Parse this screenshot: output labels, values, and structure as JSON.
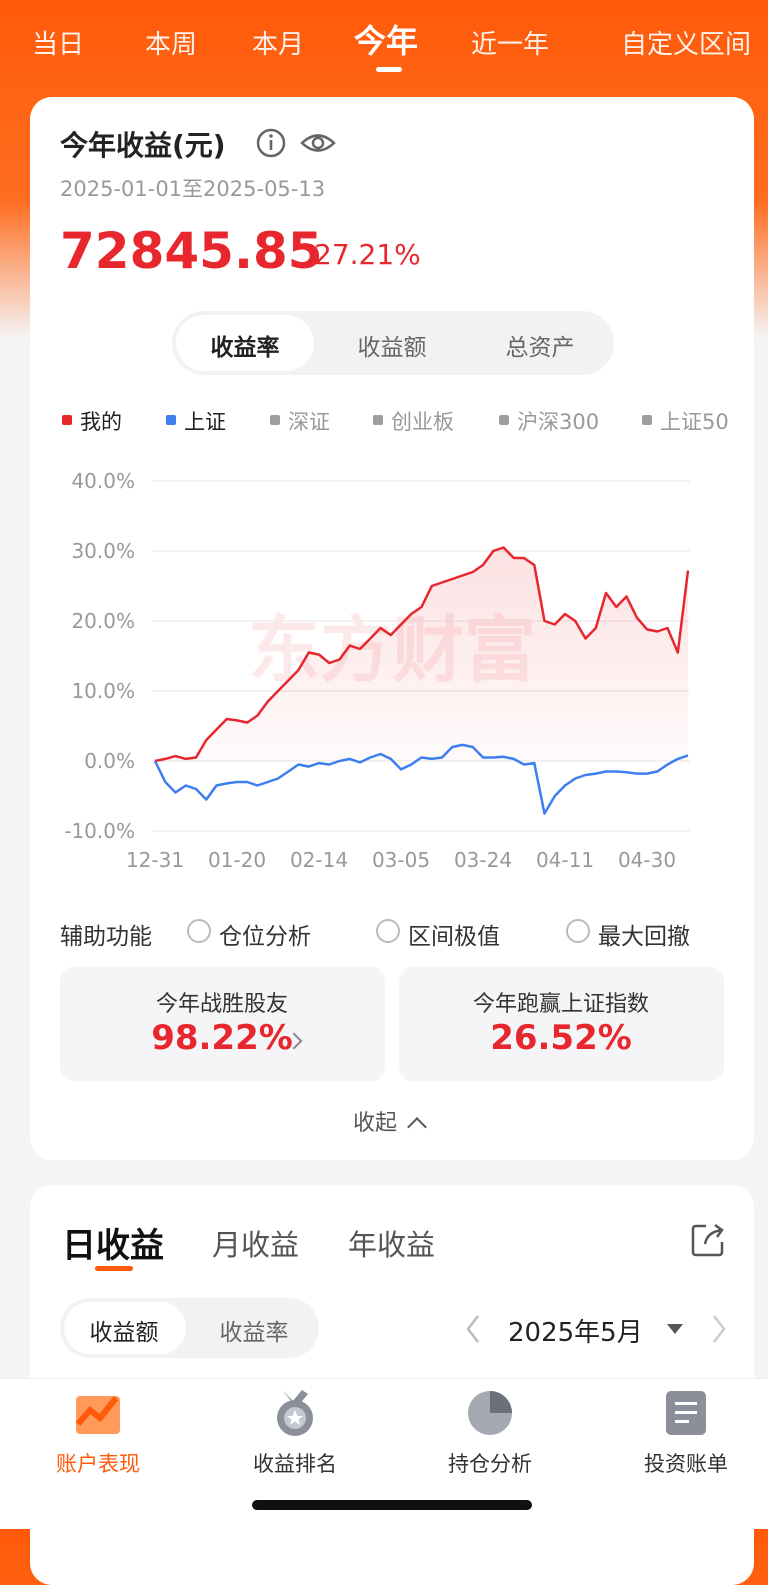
{
  "period_tabs": [
    "当日",
    "本周",
    "本月",
    "今年",
    "近一年",
    "自定义区间"
  ],
  "active_tab": 3,
  "summary": {
    "title": "今年收益(元)",
    "date_range": "2025-01-01至2025-05-13",
    "amount": "72845.85",
    "rate": "27.21%"
  },
  "metric_tabs": [
    "收益率",
    "收益额",
    "总资产"
  ],
  "active_metric": 0,
  "chart_data": {
    "type": "line",
    "watermark": "东方财富",
    "categories": [
      "12-31",
      null,
      null,
      null,
      null,
      null,
      null,
      null,
      "01-20",
      null,
      null,
      null,
      null,
      null,
      null,
      null,
      "02-14",
      null,
      null,
      null,
      null,
      null,
      null,
      null,
      "03-05",
      null,
      null,
      null,
      null,
      null,
      null,
      null,
      "03-24",
      null,
      null,
      null,
      null,
      null,
      null,
      null,
      "04-11",
      null,
      null,
      null,
      null,
      null,
      null,
      null,
      "04-30",
      null,
      null,
      null,
      null
    ],
    "series": [
      {
        "name": "我的",
        "color": "#e8262d",
        "values": [
          0,
          0.3,
          0.7,
          0.3,
          0.5,
          3,
          4.5,
          6,
          5.8,
          5.5,
          6.5,
          8.5,
          10,
          11.5,
          13,
          15.5,
          15.2,
          14,
          14.5,
          16.5,
          16,
          17.5,
          19,
          18,
          19.5,
          21,
          22,
          25,
          25.5,
          26,
          26.5,
          27,
          28,
          30,
          30.5,
          29,
          29,
          28,
          20,
          19.5,
          21,
          20,
          17.5,
          19,
          24,
          22,
          23.5,
          20.5,
          18.8,
          18.5,
          19,
          15.5,
          27.21
        ]
      },
      {
        "name": "上证",
        "color": "#3d7ef0",
        "values": [
          0,
          -3,
          -4.5,
          -3.5,
          -4,
          -5.5,
          -3.5,
          -3.2,
          -3,
          -3,
          -3.5,
          -3,
          -2.5,
          -1.5,
          -0.5,
          -0.8,
          -0.3,
          -0.5,
          0,
          0.3,
          -0.2,
          0.5,
          1,
          0.3,
          -1.2,
          -0.5,
          0.5,
          0.3,
          0.5,
          2,
          2.3,
          2,
          0.5,
          0.5,
          0.6,
          0.3,
          -0.5,
          -0.3,
          -7.5,
          -5,
          -3.5,
          -2.5,
          -2,
          -1.8,
          -1.5,
          -1.5,
          -1.6,
          -1.8,
          -1.8,
          -1.5,
          -0.5,
          0.3,
          0.8
        ]
      }
    ],
    "other_indices": [
      {
        "name": "深证",
        "color": "#9e9e9e"
      },
      {
        "name": "创业板",
        "color": "#9e9e9e"
      },
      {
        "name": "沪深300",
        "color": "#9e9e9e"
      },
      {
        "name": "上证50",
        "color": "#9e9e9e"
      }
    ],
    "ylim": [
      -10,
      40
    ],
    "yticks": [
      {
        "value": -10,
        "label": "-10.0%"
      },
      {
        "value": 0,
        "label": "0.0%"
      },
      {
        "value": 10,
        "label": "10.0%"
      },
      {
        "value": 20,
        "label": "20.0%"
      },
      {
        "value": 30,
        "label": "30.0%"
      },
      {
        "value": 40,
        "label": "40.0%"
      }
    ],
    "grid": true
  },
  "tools": {
    "label": "辅助功能",
    "options": [
      "仓位分析",
      "区间极值",
      "最大回撤"
    ]
  },
  "stats": [
    {
      "label": "今年战胜股友",
      "value": "98.22%"
    },
    {
      "label": "今年跑赢上证指数",
      "value": "26.52%"
    }
  ],
  "collapse": "收起",
  "daily": {
    "tabs": [
      "日收益",
      "月收益",
      "年收益"
    ],
    "toggle": [
      "收益额",
      "收益率"
    ],
    "month": "2025年5月"
  },
  "nav": [
    "账户表现",
    "收益排名",
    "持仓分析",
    "投资账单"
  ]
}
